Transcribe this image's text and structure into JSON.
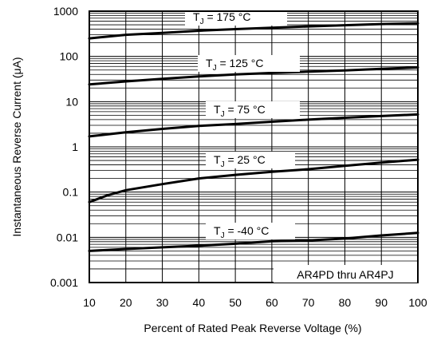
{
  "chart_data": {
    "type": "line",
    "xlabel": "Percent of Rated Peak Reverse Voltage (%)",
    "ylabel": "Instantaneous Reverse Current (μA)",
    "xlim": [
      10,
      100
    ],
    "ylim": [
      0.001,
      1000
    ],
    "y_scale": "log",
    "grid": true,
    "x_ticks": [
      "10",
      "20",
      "30",
      "40",
      "50",
      "60",
      "70",
      "80",
      "90",
      "100"
    ],
    "y_ticks": [
      "0.001",
      "0.01",
      "0.1",
      "1",
      "10",
      "100",
      "1000"
    ],
    "note": "AR4PD thru AR4PJ",
    "series": [
      {
        "name": "T_J = 175 °C",
        "label_main": "T",
        "label_sub": "J",
        "label_rest": " = 175 °C",
        "x": [
          10,
          20,
          30,
          40,
          50,
          60,
          70,
          80,
          90,
          100
        ],
        "y": [
          250,
          300,
          330,
          370,
          400,
          430,
          460,
          490,
          520,
          540
        ]
      },
      {
        "name": "T_J = 125 °C",
        "label_main": "T",
        "label_sub": "J",
        "label_rest": " = 125 °C",
        "x": [
          10,
          20,
          30,
          40,
          50,
          60,
          70,
          80,
          90,
          100
        ],
        "y": [
          24,
          28,
          32,
          36,
          40,
          43,
          46,
          49,
          53,
          57
        ]
      },
      {
        "name": "T_J = 75 °C",
        "label_main": "T",
        "label_sub": "J",
        "label_rest": " = 75 °C",
        "x": [
          10,
          20,
          30,
          40,
          50,
          60,
          70,
          80,
          90,
          100
        ],
        "y": [
          1.7,
          2.1,
          2.5,
          2.9,
          3.2,
          3.6,
          4.0,
          4.4,
          4.8,
          5.2
        ]
      },
      {
        "name": "T_J = 25 °C",
        "label_main": "T",
        "label_sub": "J",
        "label_rest": " = 25 °C",
        "x": [
          10,
          15,
          20,
          30,
          40,
          50,
          60,
          70,
          80,
          90,
          100
        ],
        "y": [
          0.06,
          0.085,
          0.11,
          0.15,
          0.2,
          0.24,
          0.28,
          0.32,
          0.38,
          0.45,
          0.52
        ]
      },
      {
        "name": "T_J = -40 °C",
        "label_main": "T",
        "label_sub": "J",
        "label_rest": " = -40 °C",
        "x": [
          10,
          20,
          30,
          40,
          50,
          60,
          70,
          80,
          90,
          100
        ],
        "y": [
          0.005,
          0.0055,
          0.006,
          0.0065,
          0.0072,
          0.0082,
          0.0085,
          0.0094,
          0.011,
          0.0125
        ]
      }
    ]
  }
}
